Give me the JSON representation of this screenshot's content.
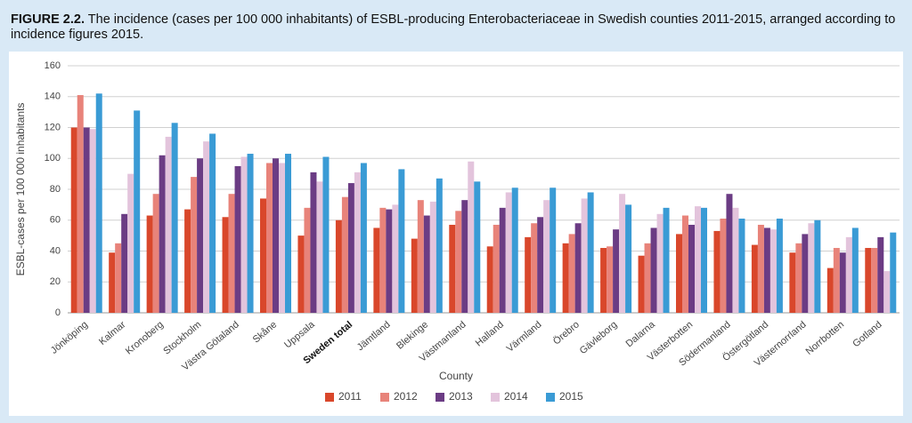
{
  "chart_data": {
    "type": "bar",
    "figure_label": "FIGURE 2.2.",
    "title": "The incidence (cases per 100 000 inhabitants) of ESBL-producing Enterobacteriaceae in Swedish counties 2011-2015, arranged according to incidence figures 2015.",
    "xlabel": "County",
    "ylabel": "ESBL-cases per 100 000 inhabitants",
    "categories": [
      "Jönköping",
      "Kalmar",
      "Kronoberg",
      "Stockholm",
      "Västra Götaland",
      "Skåne",
      "Uppsala",
      "Sweden total",
      "Jämtland",
      "Blekinge",
      "Västmanland",
      "Halland",
      "Värmland",
      "Örebro",
      "Gävleborg",
      "Dalarna",
      "Västerbotten",
      "Södermanland",
      "Östergötland",
      "Västernorrland",
      "Norrbotten",
      "Gotland"
    ],
    "bold_category_index": 7,
    "series": [
      {
        "name": "2011",
        "color": "#d9472b",
        "values": [
          120,
          39,
          63,
          67,
          62,
          74,
          50,
          60,
          55,
          48,
          57,
          43,
          49,
          45,
          42,
          37,
          51,
          53,
          44,
          39,
          29,
          42
        ]
      },
      {
        "name": "2012",
        "color": "#e8837a",
        "values": [
          141,
          45,
          77,
          88,
          77,
          97,
          68,
          75,
          68,
          73,
          66,
          57,
          58,
          51,
          43,
          45,
          63,
          61,
          57,
          45,
          42,
          42
        ]
      },
      {
        "name": "2013",
        "color": "#6b3c84",
        "values": [
          120,
          64,
          102,
          100,
          95,
          100,
          91,
          84,
          67,
          63,
          73,
          68,
          62,
          58,
          54,
          55,
          57,
          77,
          55,
          51,
          39,
          49
        ]
      },
      {
        "name": "2014",
        "color": "#e3c4dc",
        "values": [
          119,
          90,
          114,
          111,
          101,
          97,
          85,
          91,
          70,
          72,
          98,
          78,
          73,
          74,
          77,
          64,
          69,
          68,
          54,
          58,
          49,
          27
        ]
      },
      {
        "name": "2015",
        "color": "#3a9bd5",
        "values": [
          142,
          131,
          123,
          116,
          103,
          103,
          101,
          97,
          93,
          87,
          85,
          81,
          81,
          78,
          70,
          68,
          68,
          61,
          61,
          60,
          55,
          52
        ]
      }
    ],
    "ylim": [
      0,
      160
    ],
    "yticks": [
      0,
      20,
      40,
      60,
      80,
      100,
      120,
      140,
      160
    ],
    "grid": true,
    "legend": "bottom"
  }
}
